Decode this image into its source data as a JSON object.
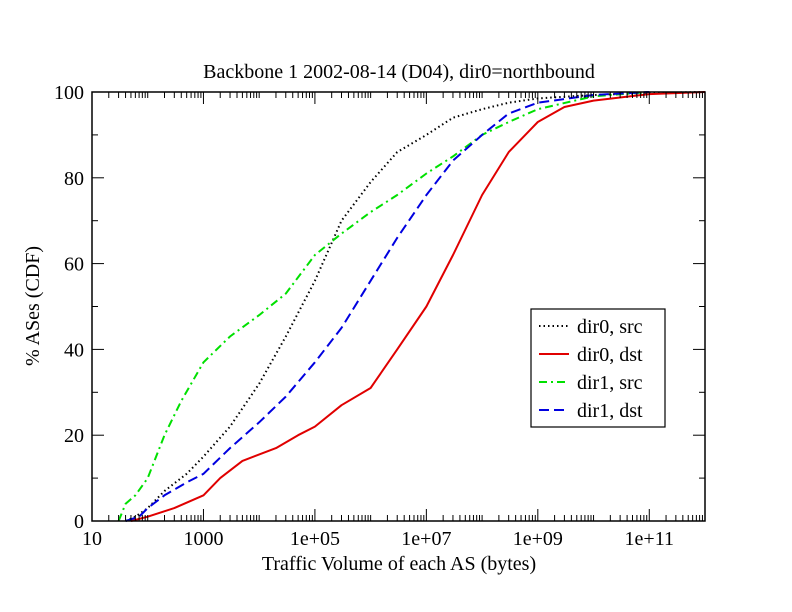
{
  "chart_data": {
    "type": "line",
    "title": "Backbone 1 2002-08-14 (D04), dir0=northbound",
    "xlabel": "Traffic Volume of each AS (bytes)",
    "ylabel": "% ASes (CDF)",
    "x_scale": "log10",
    "xlim": [
      10,
      1000000000000.0
    ],
    "ylim": [
      0,
      100
    ],
    "x_tick_labels": [
      "10",
      "1000",
      "1e+05",
      "1e+07",
      "1e+09",
      "1e+11"
    ],
    "x_tick_values": [
      10,
      1000,
      100000,
      10000000,
      1000000000,
      100000000000
    ],
    "y_tick_labels": [
      "0",
      "20",
      "40",
      "60",
      "80",
      "100"
    ],
    "y_tick_values": [
      0,
      20,
      40,
      60,
      80,
      100
    ],
    "legend_position": "middle-right",
    "series": [
      {
        "name": "dir0, src",
        "color": "#000000",
        "dash": "dotted",
        "points": [
          [
            40,
            0
          ],
          [
            60,
            1
          ],
          [
            100,
            3
          ],
          [
            200,
            7
          ],
          [
            500,
            11
          ],
          [
            1000,
            15
          ],
          [
            3000,
            22
          ],
          [
            10000,
            32
          ],
          [
            30000,
            43
          ],
          [
            100000,
            56
          ],
          [
            300000,
            70
          ],
          [
            1000000,
            79
          ],
          [
            3000000,
            86
          ],
          [
            10000000,
            90
          ],
          [
            30000000,
            94
          ],
          [
            100000000,
            96
          ],
          [
            300000000,
            97.5
          ],
          [
            1000000000,
            98.5
          ],
          [
            10000000000,
            99.3
          ],
          [
            100000000000,
            99.8
          ],
          [
            1000000000000,
            100
          ]
        ]
      },
      {
        "name": "dir0, dst",
        "color": "#e00000",
        "dash": "solid",
        "points": [
          [
            50,
            0
          ],
          [
            100,
            1
          ],
          [
            300,
            3
          ],
          [
            1000,
            6
          ],
          [
            2000,
            10
          ],
          [
            5000,
            14
          ],
          [
            20000,
            17
          ],
          [
            50000,
            20
          ],
          [
            100000,
            22
          ],
          [
            300000,
            27
          ],
          [
            1000000,
            31
          ],
          [
            3000000,
            40
          ],
          [
            10000000,
            50
          ],
          [
            30000000,
            62
          ],
          [
            100000000,
            76
          ],
          [
            300000000,
            86
          ],
          [
            1000000000,
            93
          ],
          [
            3000000000,
            96.5
          ],
          [
            10000000000,
            98
          ],
          [
            100000000000,
            99.5
          ],
          [
            1000000000000,
            100
          ]
        ]
      },
      {
        "name": "dir1, src",
        "color": "#00e000",
        "dash": "dash-dot",
        "points": [
          [
            30,
            0
          ],
          [
            40,
            4
          ],
          [
            60,
            6
          ],
          [
            100,
            10
          ],
          [
            200,
            20
          ],
          [
            400,
            28
          ],
          [
            1000,
            37
          ],
          [
            3000,
            43
          ],
          [
            10000,
            48
          ],
          [
            30000,
            53
          ],
          [
            100000,
            62
          ],
          [
            300000,
            67
          ],
          [
            1000000,
            72
          ],
          [
            3000000,
            76
          ],
          [
            10000000,
            81
          ],
          [
            30000000,
            85
          ],
          [
            100000000,
            90
          ],
          [
            300000000,
            93
          ],
          [
            1000000000,
            96
          ],
          [
            10000000000,
            99
          ],
          [
            100000000000,
            100
          ]
        ]
      },
      {
        "name": "dir1, dst",
        "color": "#0000e0",
        "dash": "dashed",
        "points": [
          [
            40,
            0
          ],
          [
            70,
            1
          ],
          [
            100,
            3
          ],
          [
            200,
            6
          ],
          [
            500,
            9
          ],
          [
            1000,
            11
          ],
          [
            3000,
            17
          ],
          [
            10000,
            23
          ],
          [
            30000,
            29
          ],
          [
            100000,
            37
          ],
          [
            300000,
            45
          ],
          [
            1000000,
            56
          ],
          [
            3000000,
            66
          ],
          [
            10000000,
            76
          ],
          [
            30000000,
            84
          ],
          [
            100000000,
            90
          ],
          [
            300000000,
            95
          ],
          [
            1000000000,
            97.5
          ],
          [
            10000000000,
            99.3
          ],
          [
            100000000000,
            100
          ]
        ]
      }
    ]
  }
}
